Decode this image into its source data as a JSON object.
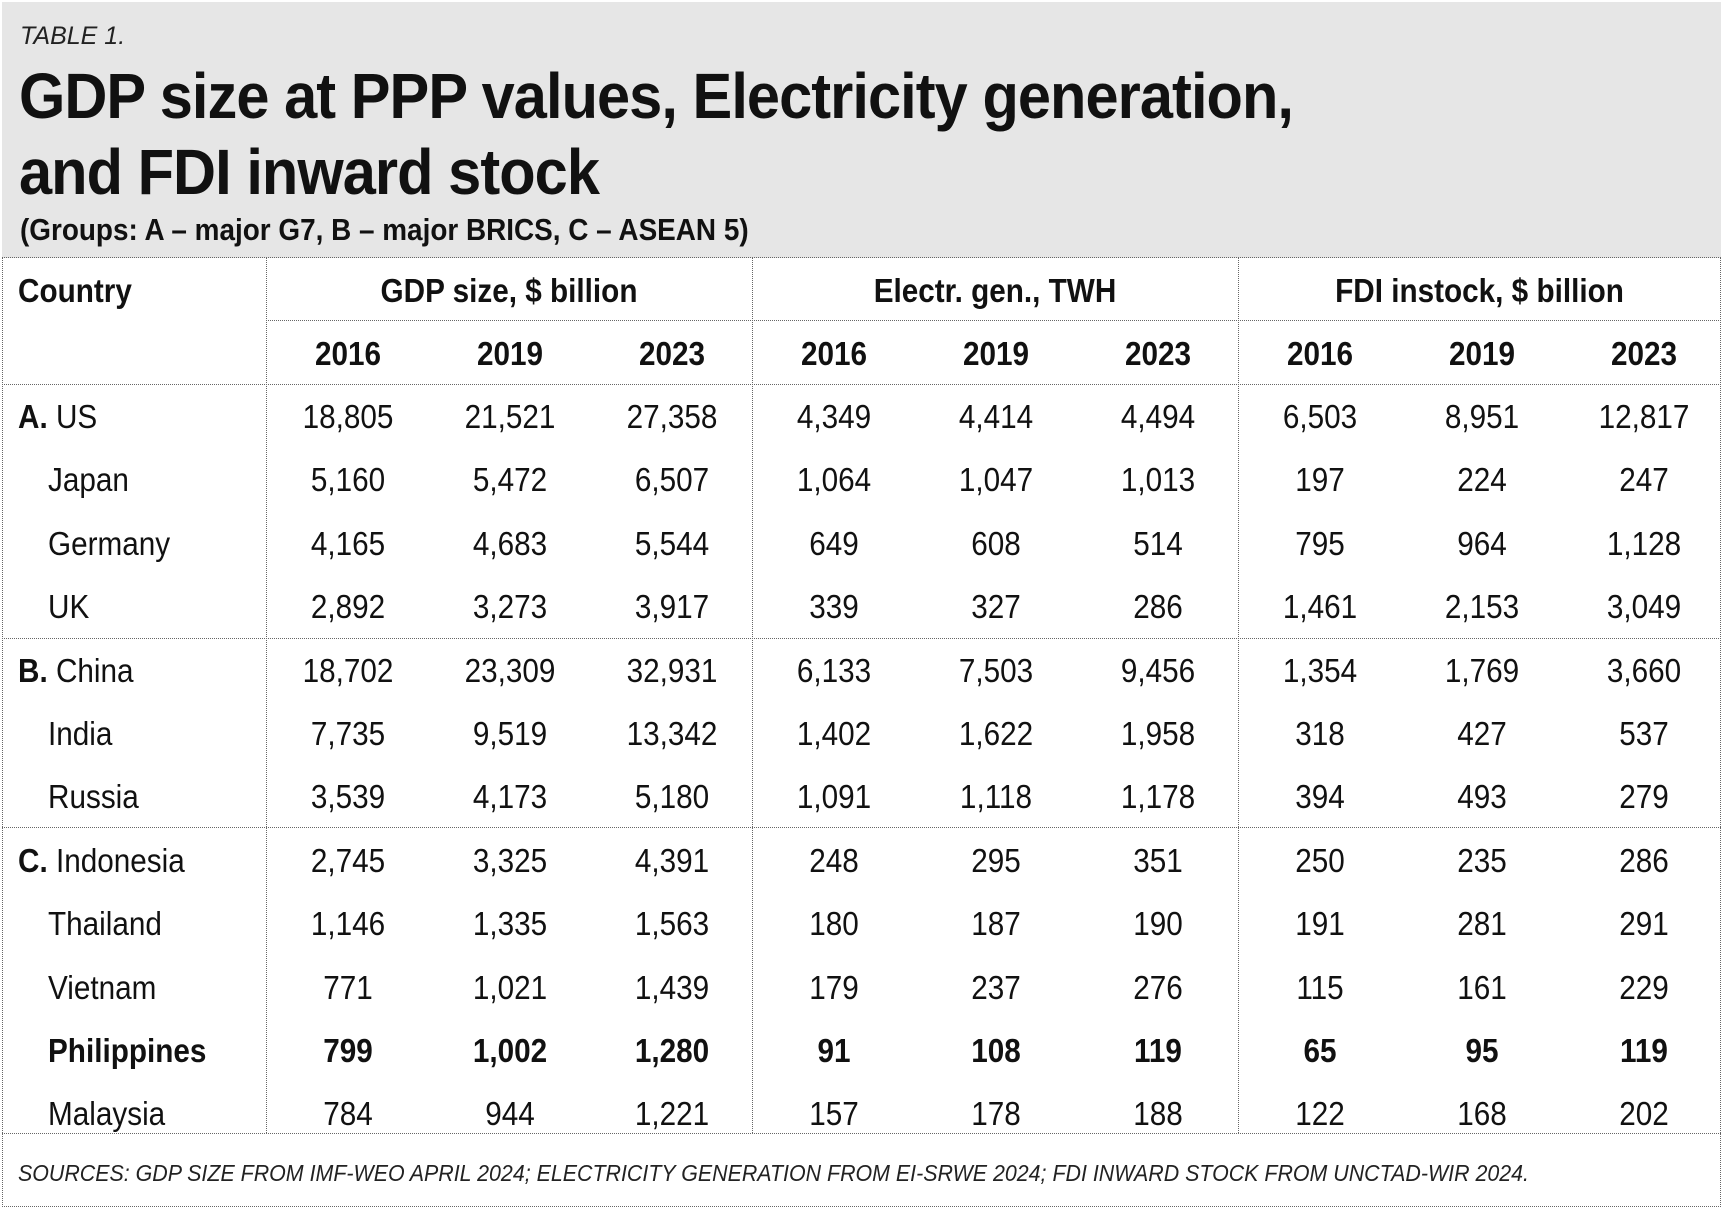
{
  "table_label": "TABLE 1.",
  "title_line1": "GDP size at PPP values, Electricity generation,",
  "title_line2": "and FDI inward stock",
  "subtitle": "(Groups: A – major G7, B – major BRICS, C – ASEAN 5)",
  "headers": {
    "country": "Country",
    "groups": [
      "GDP size, $ billion",
      "Electr. gen., TWH",
      "FDI instock, $ billion"
    ],
    "years": [
      "2016",
      "2019",
      "2023"
    ]
  },
  "rows": [
    {
      "group": "A.",
      "country": "US",
      "bold": false,
      "values": [
        "18,805",
        "21,521",
        "27,358",
        "4,349",
        "4,414",
        "4,494",
        "6,503",
        "8,951",
        "12,817"
      ]
    },
    {
      "group": "",
      "country": "Japan",
      "bold": false,
      "values": [
        "5,160",
        "5,472",
        "6,507",
        "1,064",
        "1,047",
        "1,013",
        "197",
        "224",
        "247"
      ]
    },
    {
      "group": "",
      "country": "Germany",
      "bold": false,
      "values": [
        "4,165",
        "4,683",
        "5,544",
        "649",
        "608",
        "514",
        "795",
        "964",
        "1,128"
      ]
    },
    {
      "group": "",
      "country": "UK",
      "bold": false,
      "values": [
        "2,892",
        "3,273",
        "3,917",
        "339",
        "327",
        "286",
        "1,461",
        "2,153",
        "3,049"
      ]
    },
    {
      "group": "B.",
      "country": "China",
      "bold": false,
      "values": [
        "18,702",
        "23,309",
        "32,931",
        "6,133",
        "7,503",
        "9,456",
        "1,354",
        "1,769",
        "3,660"
      ]
    },
    {
      "group": "",
      "country": "India",
      "bold": false,
      "values": [
        "7,735",
        "9,519",
        "13,342",
        "1,402",
        "1,622",
        "1,958",
        "318",
        "427",
        "537"
      ]
    },
    {
      "group": "",
      "country": "Russia",
      "bold": false,
      "values": [
        "3,539",
        "4,173",
        "5,180",
        "1,091",
        "1,118",
        "1,178",
        "394",
        "493",
        "279"
      ]
    },
    {
      "group": "C.",
      "country": "Indonesia",
      "bold": false,
      "values": [
        "2,745",
        "3,325",
        "4,391",
        "248",
        "295",
        "351",
        "250",
        "235",
        "286"
      ]
    },
    {
      "group": "",
      "country": "Thailand",
      "bold": false,
      "values": [
        "1,146",
        "1,335",
        "1,563",
        "180",
        "187",
        "190",
        "191",
        "281",
        "291"
      ]
    },
    {
      "group": "",
      "country": "Vietnam",
      "bold": false,
      "values": [
        "771",
        "1,021",
        "1,439",
        "179",
        "237",
        "276",
        "115",
        "161",
        "229"
      ]
    },
    {
      "group": "",
      "country": "Philippines",
      "bold": true,
      "values": [
        "799",
        "1,002",
        "1,280",
        "91",
        "108",
        "119",
        "65",
        "95",
        "119"
      ]
    },
    {
      "group": "",
      "country": "Malaysia",
      "bold": false,
      "values": [
        "784",
        "944",
        "1,221",
        "157",
        "178",
        "188",
        "122",
        "168",
        "202"
      ]
    }
  ],
  "sources": "SOURCES: GDP SIZE FROM IMF-WEO APRIL 2024; ELECTRICITY GENERATION FROM EI-SRWE 2024;  FDI INWARD STOCK FROM UNCTAD-WIR 2024."
}
